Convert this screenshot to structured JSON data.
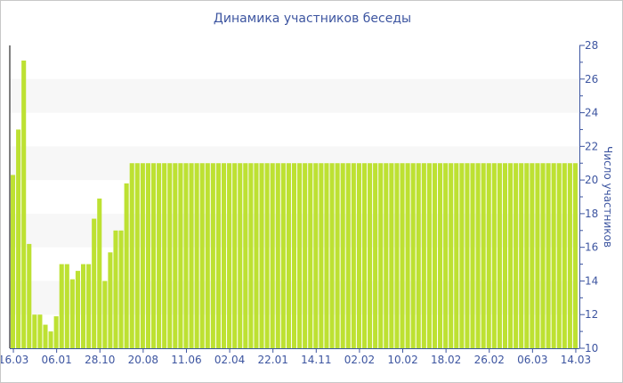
{
  "chart_data": {
    "type": "bar",
    "title": "Динамика участников беседы",
    "ylabel": "Число участников",
    "xlabel": "",
    "ylim": [
      10,
      28
    ],
    "y_ticks": [
      10,
      12,
      14,
      16,
      18,
      20,
      22,
      24,
      26,
      28
    ],
    "y_axis_side": "right",
    "x_tick_labels": [
      "16.03",
      "06.01",
      "28.10",
      "20.08",
      "11.06",
      "02.04",
      "22.01",
      "14.11",
      "02.02",
      "10.02",
      "18.02",
      "26.02",
      "06.03",
      "14.03"
    ],
    "values": [
      20.3,
      23,
      27.1,
      16.2,
      12,
      12,
      11.4,
      11,
      11.9,
      15,
      15,
      14.1,
      14.6,
      15,
      15,
      17.7,
      18.9,
      14,
      15.7,
      17,
      17,
      19.8,
      21,
      21,
      21,
      21,
      21,
      21,
      21,
      21,
      21,
      21,
      21,
      21,
      21,
      21,
      21,
      21,
      21,
      21,
      21,
      21,
      21,
      21,
      21,
      21,
      21,
      21,
      21,
      21,
      21,
      21,
      21,
      21,
      21,
      21,
      21,
      21,
      21,
      21,
      21,
      21,
      21,
      21,
      21,
      21,
      21,
      21,
      21,
      21,
      21,
      21,
      21,
      21,
      21,
      21,
      21,
      21,
      21,
      21,
      21,
      21,
      21,
      21,
      21,
      21,
      21,
      21,
      21,
      21,
      21,
      21,
      21,
      21,
      21,
      21,
      21,
      21,
      21,
      21,
      21,
      21,
      21,
      21,
      21
    ],
    "bar_color": "#bde132",
    "band_color": "#f7f7f7",
    "axis_color": "#3d55a0",
    "grid": "alternating bands"
  }
}
